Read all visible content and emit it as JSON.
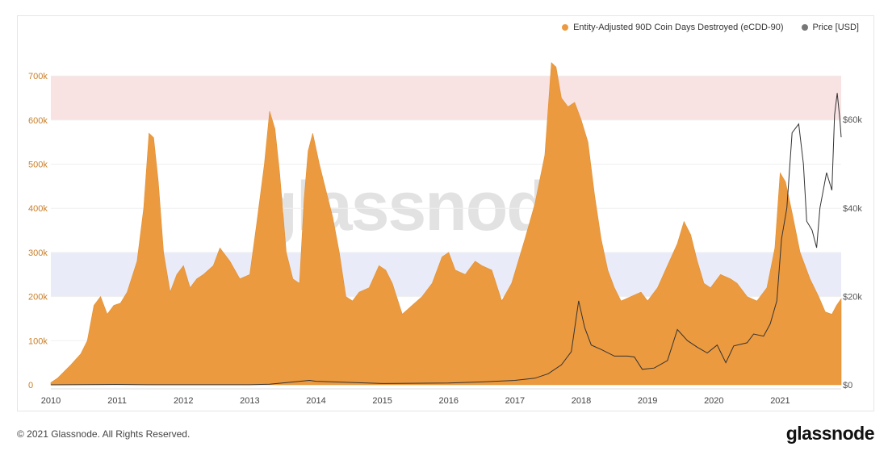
{
  "legend": {
    "series1_label": "Entity-Adjusted 90D Coin Days Destroyed (eCDD-90)",
    "series2_label": "Price [USD]"
  },
  "watermark": "glassnode",
  "footer": {
    "copyright": "© 2021 Glassnode. All Rights Reserved.",
    "brand": "glassnode"
  },
  "colors": {
    "ecdd": "#ec9a3f",
    "price": "#555555",
    "upper_band": "#f8e2e2",
    "lower_band": "#e9ecf8",
    "left_axis_text": "#c87e26"
  },
  "chart_data": {
    "type": "area",
    "title": "",
    "xlabel": "",
    "ylabel": "",
    "x_ticks": [
      "2010",
      "2011",
      "2012",
      "2013",
      "2014",
      "2015",
      "2016",
      "2017",
      "2018",
      "2019",
      "2020",
      "2021"
    ],
    "y_left_ticks": [
      "0",
      "100k",
      "200k",
      "300k",
      "400k",
      "500k",
      "600k",
      "700k"
    ],
    "y_right_ticks": [
      "$0",
      "$20k",
      "$40k",
      "$60k"
    ],
    "xlim": [
      2010.0,
      2021.92
    ],
    "ylim_left": [
      0,
      760000
    ],
    "ylim_right": [
      0,
      80000
    ],
    "bands": [
      {
        "from": 600000,
        "to": 700000,
        "color": "#f8e2e2"
      },
      {
        "from": 200000,
        "to": 300000,
        "color": "#e9ecf8"
      }
    ],
    "series": [
      {
        "name": "Entity-Adjusted 90D Coin Days Destroyed (eCDD-90)",
        "axis": "left",
        "points": [
          [
            2010.0,
            5000
          ],
          [
            2010.1,
            15000
          ],
          [
            2010.2,
            30000
          ],
          [
            2010.3,
            45000
          ],
          [
            2010.45,
            70000
          ],
          [
            2010.55,
            100000
          ],
          [
            2010.65,
            180000
          ],
          [
            2010.75,
            200000
          ],
          [
            2010.85,
            160000
          ],
          [
            2010.95,
            180000
          ],
          [
            2011.05,
            185000
          ],
          [
            2011.15,
            210000
          ],
          [
            2011.3,
            280000
          ],
          [
            2011.4,
            400000
          ],
          [
            2011.48,
            570000
          ],
          [
            2011.55,
            560000
          ],
          [
            2011.62,
            460000
          ],
          [
            2011.7,
            300000
          ],
          [
            2011.8,
            210000
          ],
          [
            2011.9,
            250000
          ],
          [
            2012.0,
            270000
          ],
          [
            2012.1,
            220000
          ],
          [
            2012.2,
            240000
          ],
          [
            2012.3,
            250000
          ],
          [
            2012.45,
            270000
          ],
          [
            2012.55,
            310000
          ],
          [
            2012.7,
            280000
          ],
          [
            2012.85,
            240000
          ],
          [
            2013.0,
            250000
          ],
          [
            2013.1,
            360000
          ],
          [
            2013.22,
            500000
          ],
          [
            2013.3,
            620000
          ],
          [
            2013.38,
            580000
          ],
          [
            2013.45,
            480000
          ],
          [
            2013.55,
            300000
          ],
          [
            2013.65,
            240000
          ],
          [
            2013.75,
            230000
          ],
          [
            2013.82,
            420000
          ],
          [
            2013.88,
            530000
          ],
          [
            2013.95,
            570000
          ],
          [
            2014.05,
            500000
          ],
          [
            2014.15,
            440000
          ],
          [
            2014.25,
            380000
          ],
          [
            2014.35,
            300000
          ],
          [
            2014.45,
            200000
          ],
          [
            2014.55,
            190000
          ],
          [
            2014.65,
            210000
          ],
          [
            2014.8,
            220000
          ],
          [
            2014.95,
            270000
          ],
          [
            2015.05,
            260000
          ],
          [
            2015.15,
            230000
          ],
          [
            2015.3,
            160000
          ],
          [
            2015.45,
            180000
          ],
          [
            2015.6,
            200000
          ],
          [
            2015.75,
            230000
          ],
          [
            2015.9,
            290000
          ],
          [
            2016.0,
            300000
          ],
          [
            2016.1,
            260000
          ],
          [
            2016.25,
            250000
          ],
          [
            2016.4,
            280000
          ],
          [
            2016.5,
            270000
          ],
          [
            2016.65,
            260000
          ],
          [
            2016.8,
            190000
          ],
          [
            2016.95,
            230000
          ],
          [
            2017.05,
            280000
          ],
          [
            2017.15,
            330000
          ],
          [
            2017.3,
            410000
          ],
          [
            2017.45,
            520000
          ],
          [
            2017.55,
            730000
          ],
          [
            2017.62,
            720000
          ],
          [
            2017.7,
            650000
          ],
          [
            2017.8,
            630000
          ],
          [
            2017.9,
            640000
          ],
          [
            2018.0,
            600000
          ],
          [
            2018.1,
            550000
          ],
          [
            2018.2,
            430000
          ],
          [
            2018.3,
            330000
          ],
          [
            2018.4,
            260000
          ],
          [
            2018.5,
            220000
          ],
          [
            2018.6,
            190000
          ],
          [
            2018.75,
            200000
          ],
          [
            2018.9,
            210000
          ],
          [
            2019.0,
            190000
          ],
          [
            2019.15,
            220000
          ],
          [
            2019.3,
            270000
          ],
          [
            2019.45,
            320000
          ],
          [
            2019.55,
            370000
          ],
          [
            2019.65,
            340000
          ],
          [
            2019.75,
            280000
          ],
          [
            2019.85,
            230000
          ],
          [
            2019.95,
            220000
          ],
          [
            2020.1,
            250000
          ],
          [
            2020.25,
            240000
          ],
          [
            2020.35,
            230000
          ],
          [
            2020.5,
            200000
          ],
          [
            2020.65,
            190000
          ],
          [
            2020.8,
            220000
          ],
          [
            2020.92,
            310000
          ],
          [
            2021.0,
            480000
          ],
          [
            2021.08,
            460000
          ],
          [
            2021.18,
            390000
          ],
          [
            2021.3,
            300000
          ],
          [
            2021.45,
            240000
          ],
          [
            2021.58,
            200000
          ],
          [
            2021.68,
            165000
          ],
          [
            2021.78,
            160000
          ],
          [
            2021.85,
            180000
          ],
          [
            2021.92,
            195000
          ]
        ]
      },
      {
        "name": "Price [USD]",
        "axis": "right",
        "points": [
          [
            2010.0,
            0
          ],
          [
            2011.0,
            100
          ],
          [
            2011.45,
            20
          ],
          [
            2012.0,
            10
          ],
          [
            2013.0,
            15
          ],
          [
            2013.3,
            150
          ],
          [
            2013.9,
            1000
          ],
          [
            2014.0,
            800
          ],
          [
            2014.5,
            550
          ],
          [
            2015.0,
            300
          ],
          [
            2016.0,
            400
          ],
          [
            2016.5,
            650
          ],
          [
            2017.0,
            1000
          ],
          [
            2017.3,
            1500
          ],
          [
            2017.5,
            2500
          ],
          [
            2017.7,
            4500
          ],
          [
            2017.85,
            7500
          ],
          [
            2017.96,
            19000
          ],
          [
            2018.05,
            13000
          ],
          [
            2018.15,
            9000
          ],
          [
            2018.3,
            8000
          ],
          [
            2018.5,
            6500
          ],
          [
            2018.7,
            6500
          ],
          [
            2018.8,
            6300
          ],
          [
            2018.92,
            3500
          ],
          [
            2019.1,
            3800
          ],
          [
            2019.3,
            5500
          ],
          [
            2019.45,
            12500
          ],
          [
            2019.6,
            10000
          ],
          [
            2019.75,
            8500
          ],
          [
            2019.9,
            7200
          ],
          [
            2020.05,
            9000
          ],
          [
            2020.18,
            5000
          ],
          [
            2020.3,
            8800
          ],
          [
            2020.5,
            9500
          ],
          [
            2020.6,
            11500
          ],
          [
            2020.75,
            11000
          ],
          [
            2020.85,
            13800
          ],
          [
            2020.95,
            19000
          ],
          [
            2021.02,
            33000
          ],
          [
            2021.1,
            40000
          ],
          [
            2021.18,
            57000
          ],
          [
            2021.28,
            59000
          ],
          [
            2021.35,
            50000
          ],
          [
            2021.4,
            37000
          ],
          [
            2021.48,
            35000
          ],
          [
            2021.55,
            31000
          ],
          [
            2021.6,
            40000
          ],
          [
            2021.7,
            48000
          ],
          [
            2021.78,
            44000
          ],
          [
            2021.82,
            61000
          ],
          [
            2021.86,
            66000
          ],
          [
            2021.9,
            60000
          ],
          [
            2021.92,
            56000
          ]
        ]
      }
    ]
  }
}
